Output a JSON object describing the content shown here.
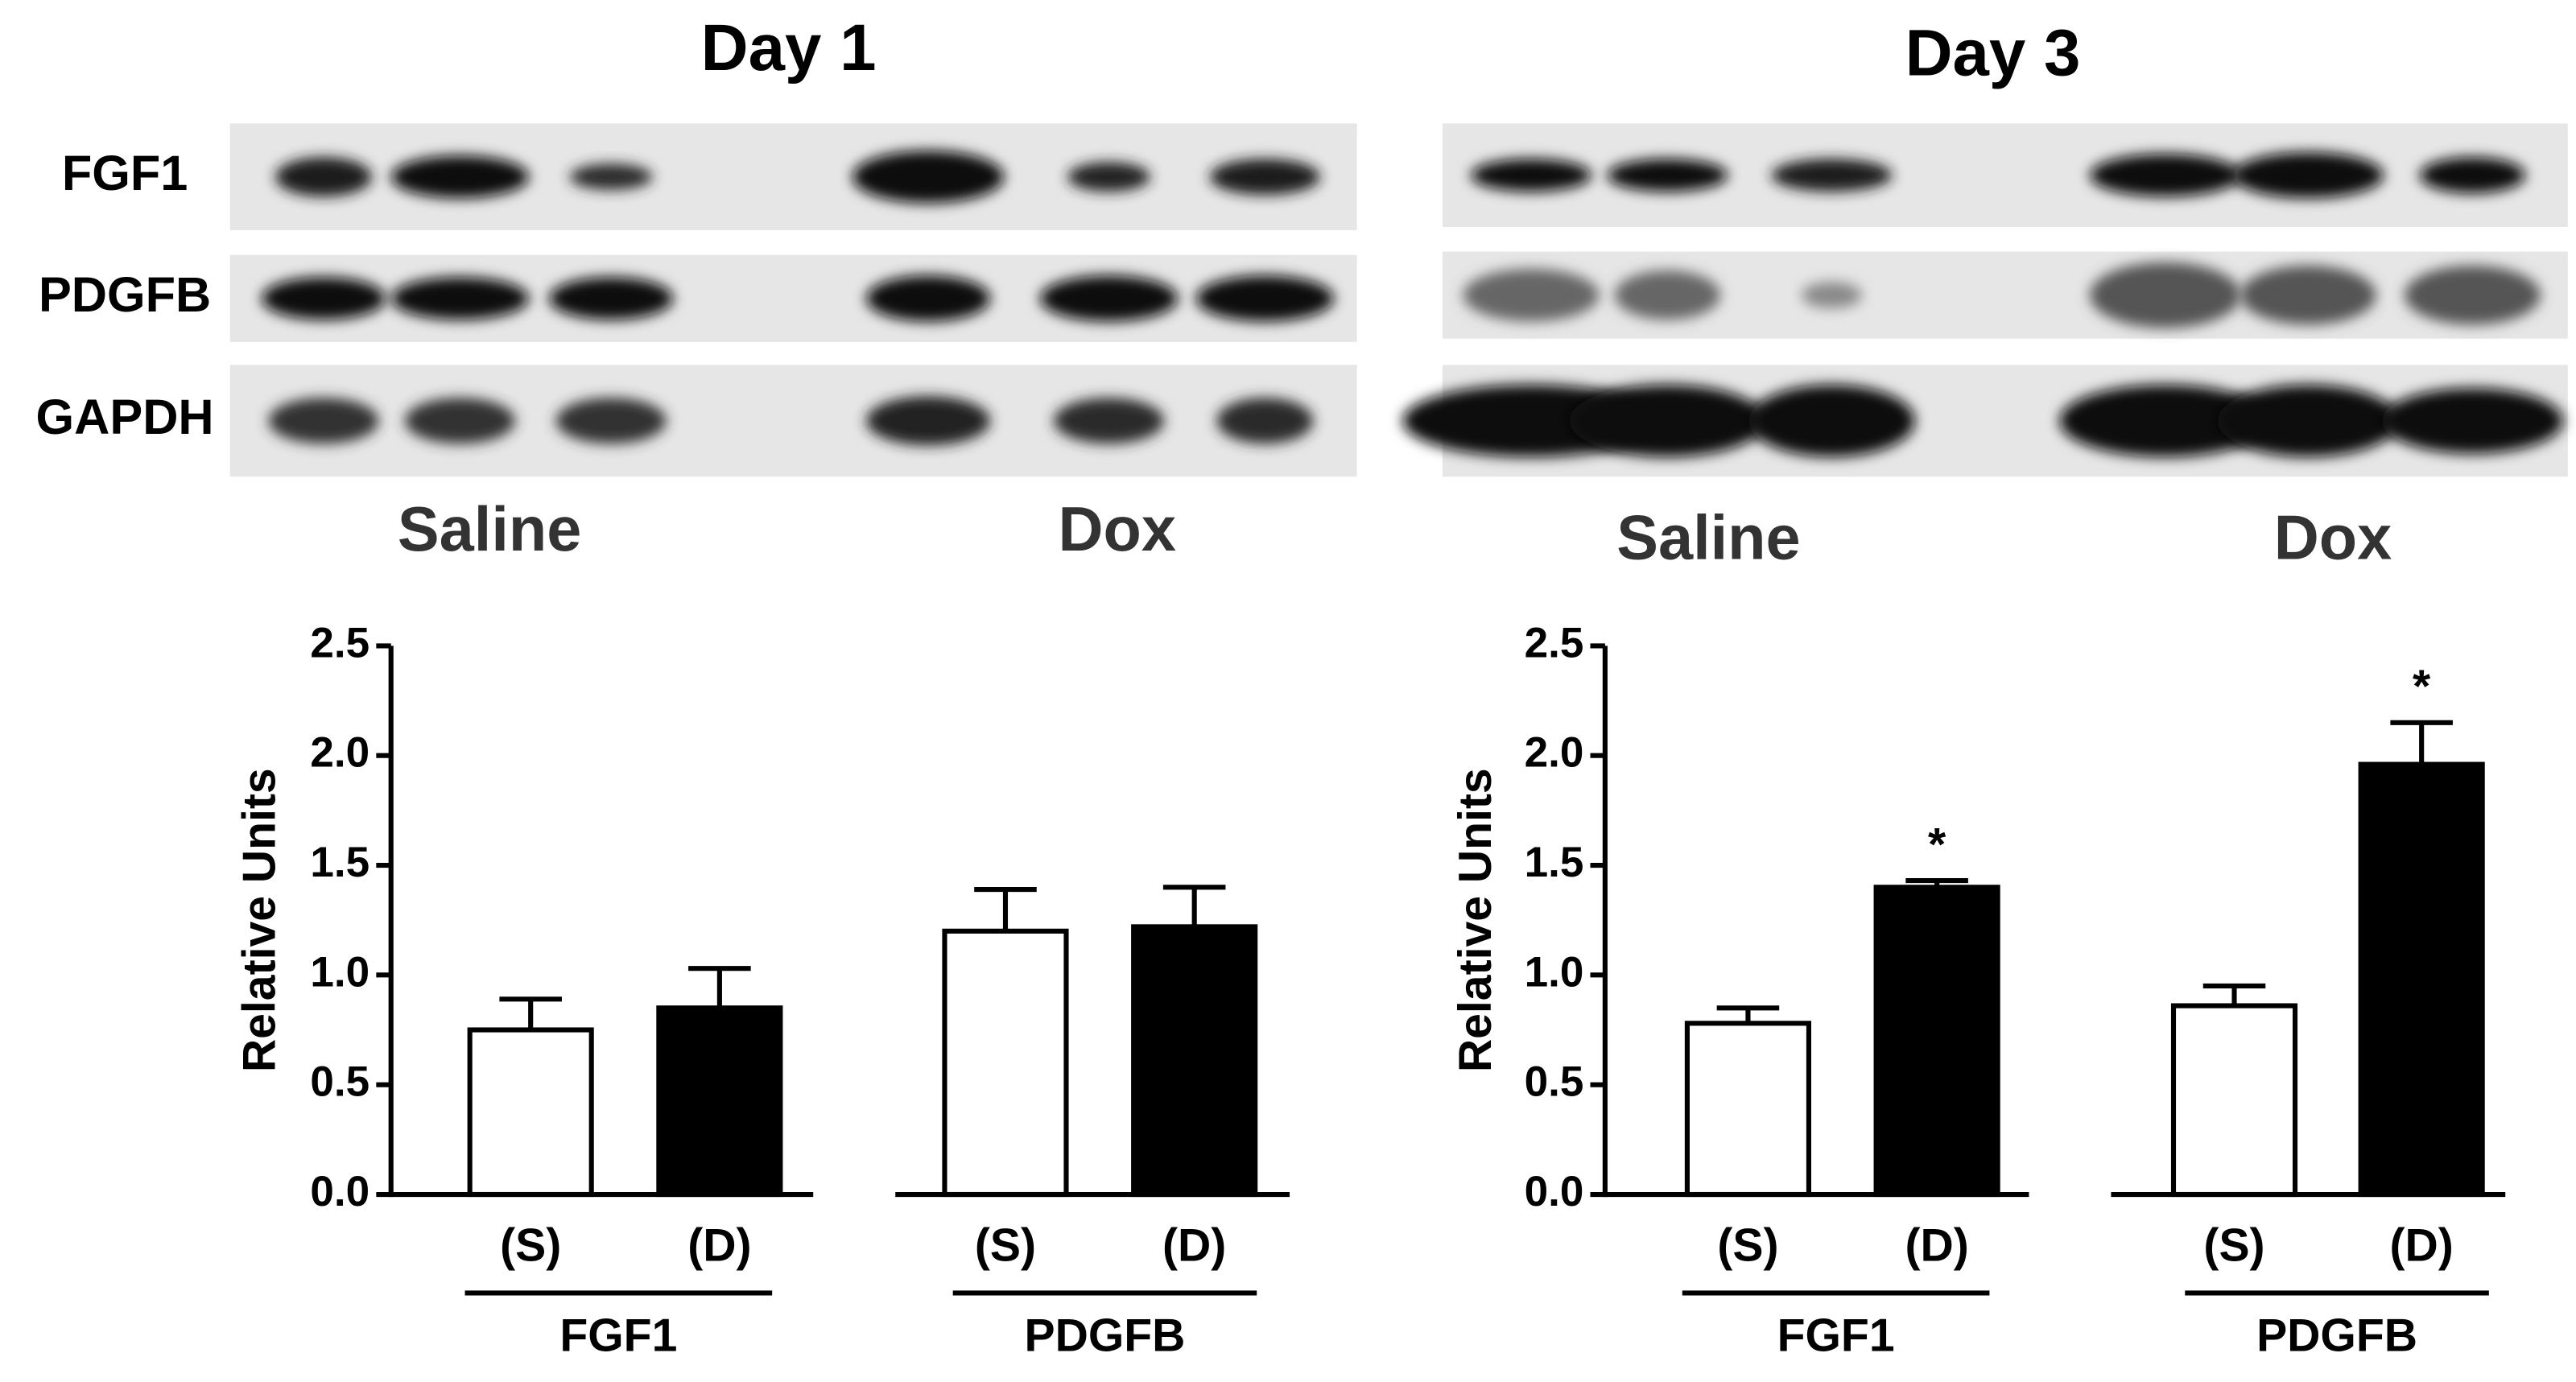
{
  "chart_data": [
    {
      "type": "bar",
      "title": "Day 1",
      "ylabel": "Relative Units",
      "categories": [
        "FGF1",
        "PDGFB"
      ],
      "series": [
        {
          "name": "(S)",
          "color": "#ffffff",
          "values": [
            0.75,
            1.2
          ],
          "errors": [
            0.14,
            0.19
          ]
        },
        {
          "name": "(D)",
          "color": "#000000",
          "values": [
            0.85,
            1.22
          ],
          "errors": [
            0.18,
            0.18
          ]
        }
      ],
      "ylim": [
        0,
        2.5
      ],
      "yticks": [
        {
          "value": 0,
          "label": "0.0"
        },
        0.5,
        {
          "value": 1,
          "label": "1.0"
        },
        1.5,
        {
          "value": 2,
          "label": "2.0"
        },
        2.5
      ]
    },
    {
      "type": "bar",
      "title": "Day 3",
      "ylabel": "Relative Units",
      "categories": [
        "FGF1",
        "PDGFB"
      ],
      "series": [
        {
          "name": "(S)",
          "color": "#ffffff",
          "values": [
            0.78,
            0.86
          ],
          "errors": [
            0.07,
            0.09
          ]
        },
        {
          "name": "(D)",
          "color": "#000000",
          "values": [
            1.4,
            1.96
          ],
          "errors": [
            0.03,
            0.19
          ],
          "annotations": [
            "*",
            "*"
          ]
        }
      ],
      "ylim": [
        0,
        2.5
      ],
      "yticks": [
        {
          "value": 0,
          "label": "0.0"
        },
        0.5,
        {
          "value": 1,
          "label": "1.0"
        },
        1.5,
        {
          "value": 2,
          "label": "2.0"
        },
        2.5
      ]
    }
  ],
  "blots": [
    {
      "rows": [
        "FGF1",
        "PDGFB",
        "GAPDH"
      ],
      "groups": [
        "Saline",
        "Dox"
      ]
    },
    {
      "groups": [
        "Saline",
        "Dox"
      ]
    }
  ]
}
